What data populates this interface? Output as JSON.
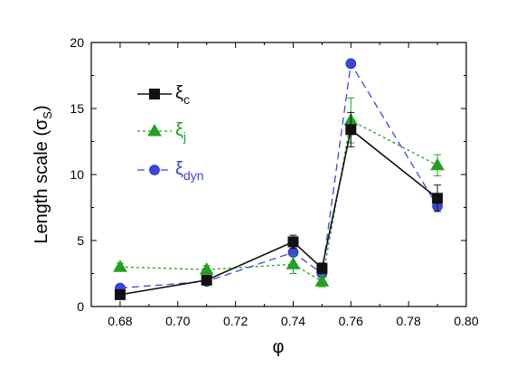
{
  "chart_data": {
    "type": "line",
    "xlabel": "φ",
    "ylabel_main": "Length scale (σ",
    "ylabel_sub": "S",
    "ylabel_close": ")",
    "xlim": [
      0.67,
      0.8
    ],
    "ylim": [
      0,
      20
    ],
    "x_ticks": [
      0.68,
      0.7,
      0.72,
      0.74,
      0.76,
      0.78,
      0.8
    ],
    "x_tick_labels": [
      "0.68",
      "0.70",
      "0.72",
      "0.74",
      "0.76",
      "0.78",
      "0.80"
    ],
    "y_ticks": [
      0,
      5,
      10,
      15,
      20
    ],
    "y_tick_labels": [
      "0",
      "5",
      "10",
      "15",
      "20"
    ],
    "grid": false,
    "legend_position": "top-left",
    "series": [
      {
        "name": "ξ",
        "name_sub": "c",
        "color": "#111111",
        "marker": "square",
        "line_style": "solid",
        "x": [
          0.68,
          0.71,
          0.74,
          0.75,
          0.76,
          0.79
        ],
        "y": [
          0.9,
          2.0,
          4.9,
          2.9,
          13.4,
          8.2
        ],
        "err": [
          0.0,
          0.3,
          0.5,
          0.4,
          1.3,
          1.0
        ]
      },
      {
        "name": "ξ",
        "name_sub": "j",
        "color": "#22a022",
        "marker": "triangle",
        "line_style": "dotted",
        "x": [
          0.68,
          0.71,
          0.74,
          0.75,
          0.76,
          0.79
        ],
        "y": [
          3.0,
          2.8,
          3.2,
          1.9,
          14.1,
          10.7
        ],
        "err": [
          0.3,
          0.3,
          0.7,
          0.4,
          1.7,
          0.8
        ]
      },
      {
        "name": "ξ",
        "name_sub": "dyn",
        "color": "#3a46e0",
        "marker": "circle",
        "line_style": "dashed",
        "x": [
          0.68,
          0.71,
          0.74,
          0.75,
          0.76,
          0.79
        ],
        "y": [
          1.4,
          1.9,
          4.1,
          2.5,
          18.4,
          7.6
        ],
        "err": [
          0.0,
          0.0,
          0.0,
          0.0,
          0.0,
          0.0
        ]
      }
    ]
  }
}
